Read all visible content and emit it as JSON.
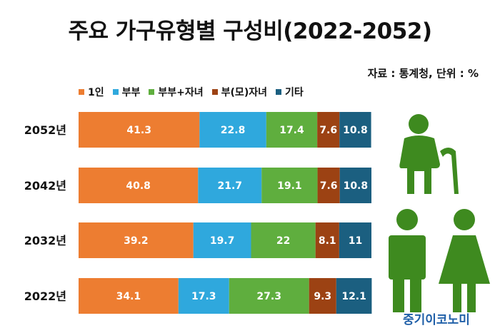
{
  "title": "주요 가구유형별 구성비(2022-2052)",
  "source_note": "자료 : 통계청, 단위 : %",
  "brand": "중기이코노미",
  "chart_data": {
    "type": "bar",
    "orientation": "horizontal",
    "stacked": true,
    "categories": [
      "2052년",
      "2042년",
      "2032년",
      "2022년"
    ],
    "series": [
      {
        "name": "1인",
        "color": "#ED7D31",
        "values": [
          41.3,
          40.8,
          39.2,
          34.1
        ]
      },
      {
        "name": "부부",
        "color": "#2FA8DD",
        "values": [
          22.8,
          21.7,
          19.7,
          17.3
        ]
      },
      {
        "name": "부부+자녀",
        "color": "#5FAE3E",
        "values": [
          17.4,
          19.1,
          22,
          27.3
        ]
      },
      {
        "name": "부(모)자녀",
        "color": "#9C4213",
        "values": [
          7.6,
          7.6,
          8.1,
          9.3
        ]
      },
      {
        "name": "기타",
        "color": "#1B5F80",
        "values": [
          10.8,
          10.8,
          11,
          12.1
        ]
      }
    ],
    "xlim": [
      0,
      100
    ],
    "legend_position": "top-left",
    "grid": false
  },
  "icons": {
    "elderly": "elderly-person-with-cane-icon",
    "man": "man-icon",
    "woman": "woman-icon",
    "color": "#3E8A1F"
  }
}
